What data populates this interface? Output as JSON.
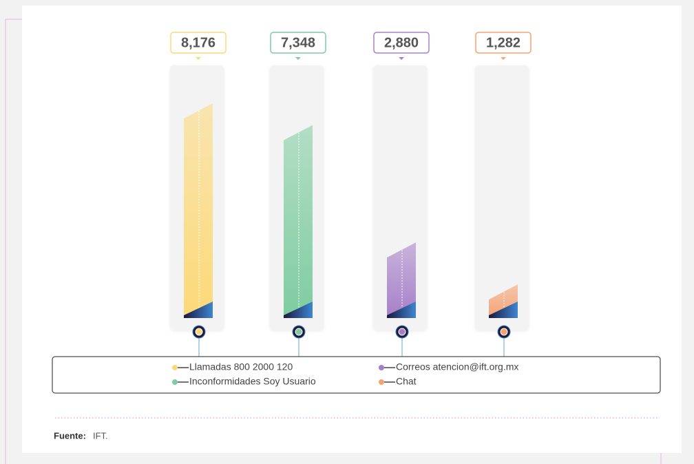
{
  "chart_data": {
    "type": "bar",
    "categories": [
      "Llamadas 800 2000 120",
      "Inconformidades Soy Usuario",
      "Correos atencion@ift.org.mx",
      "Chat"
    ],
    "values": [
      8176,
      7348,
      2880,
      1282
    ],
    "value_labels": [
      "8,176",
      "7,348",
      "2,880",
      "1,282"
    ],
    "colors": [
      "#fcd978",
      "#7fcca0",
      "#a580c8",
      "#f4a374"
    ],
    "source_label": "Fuente:",
    "source": "IFT."
  }
}
